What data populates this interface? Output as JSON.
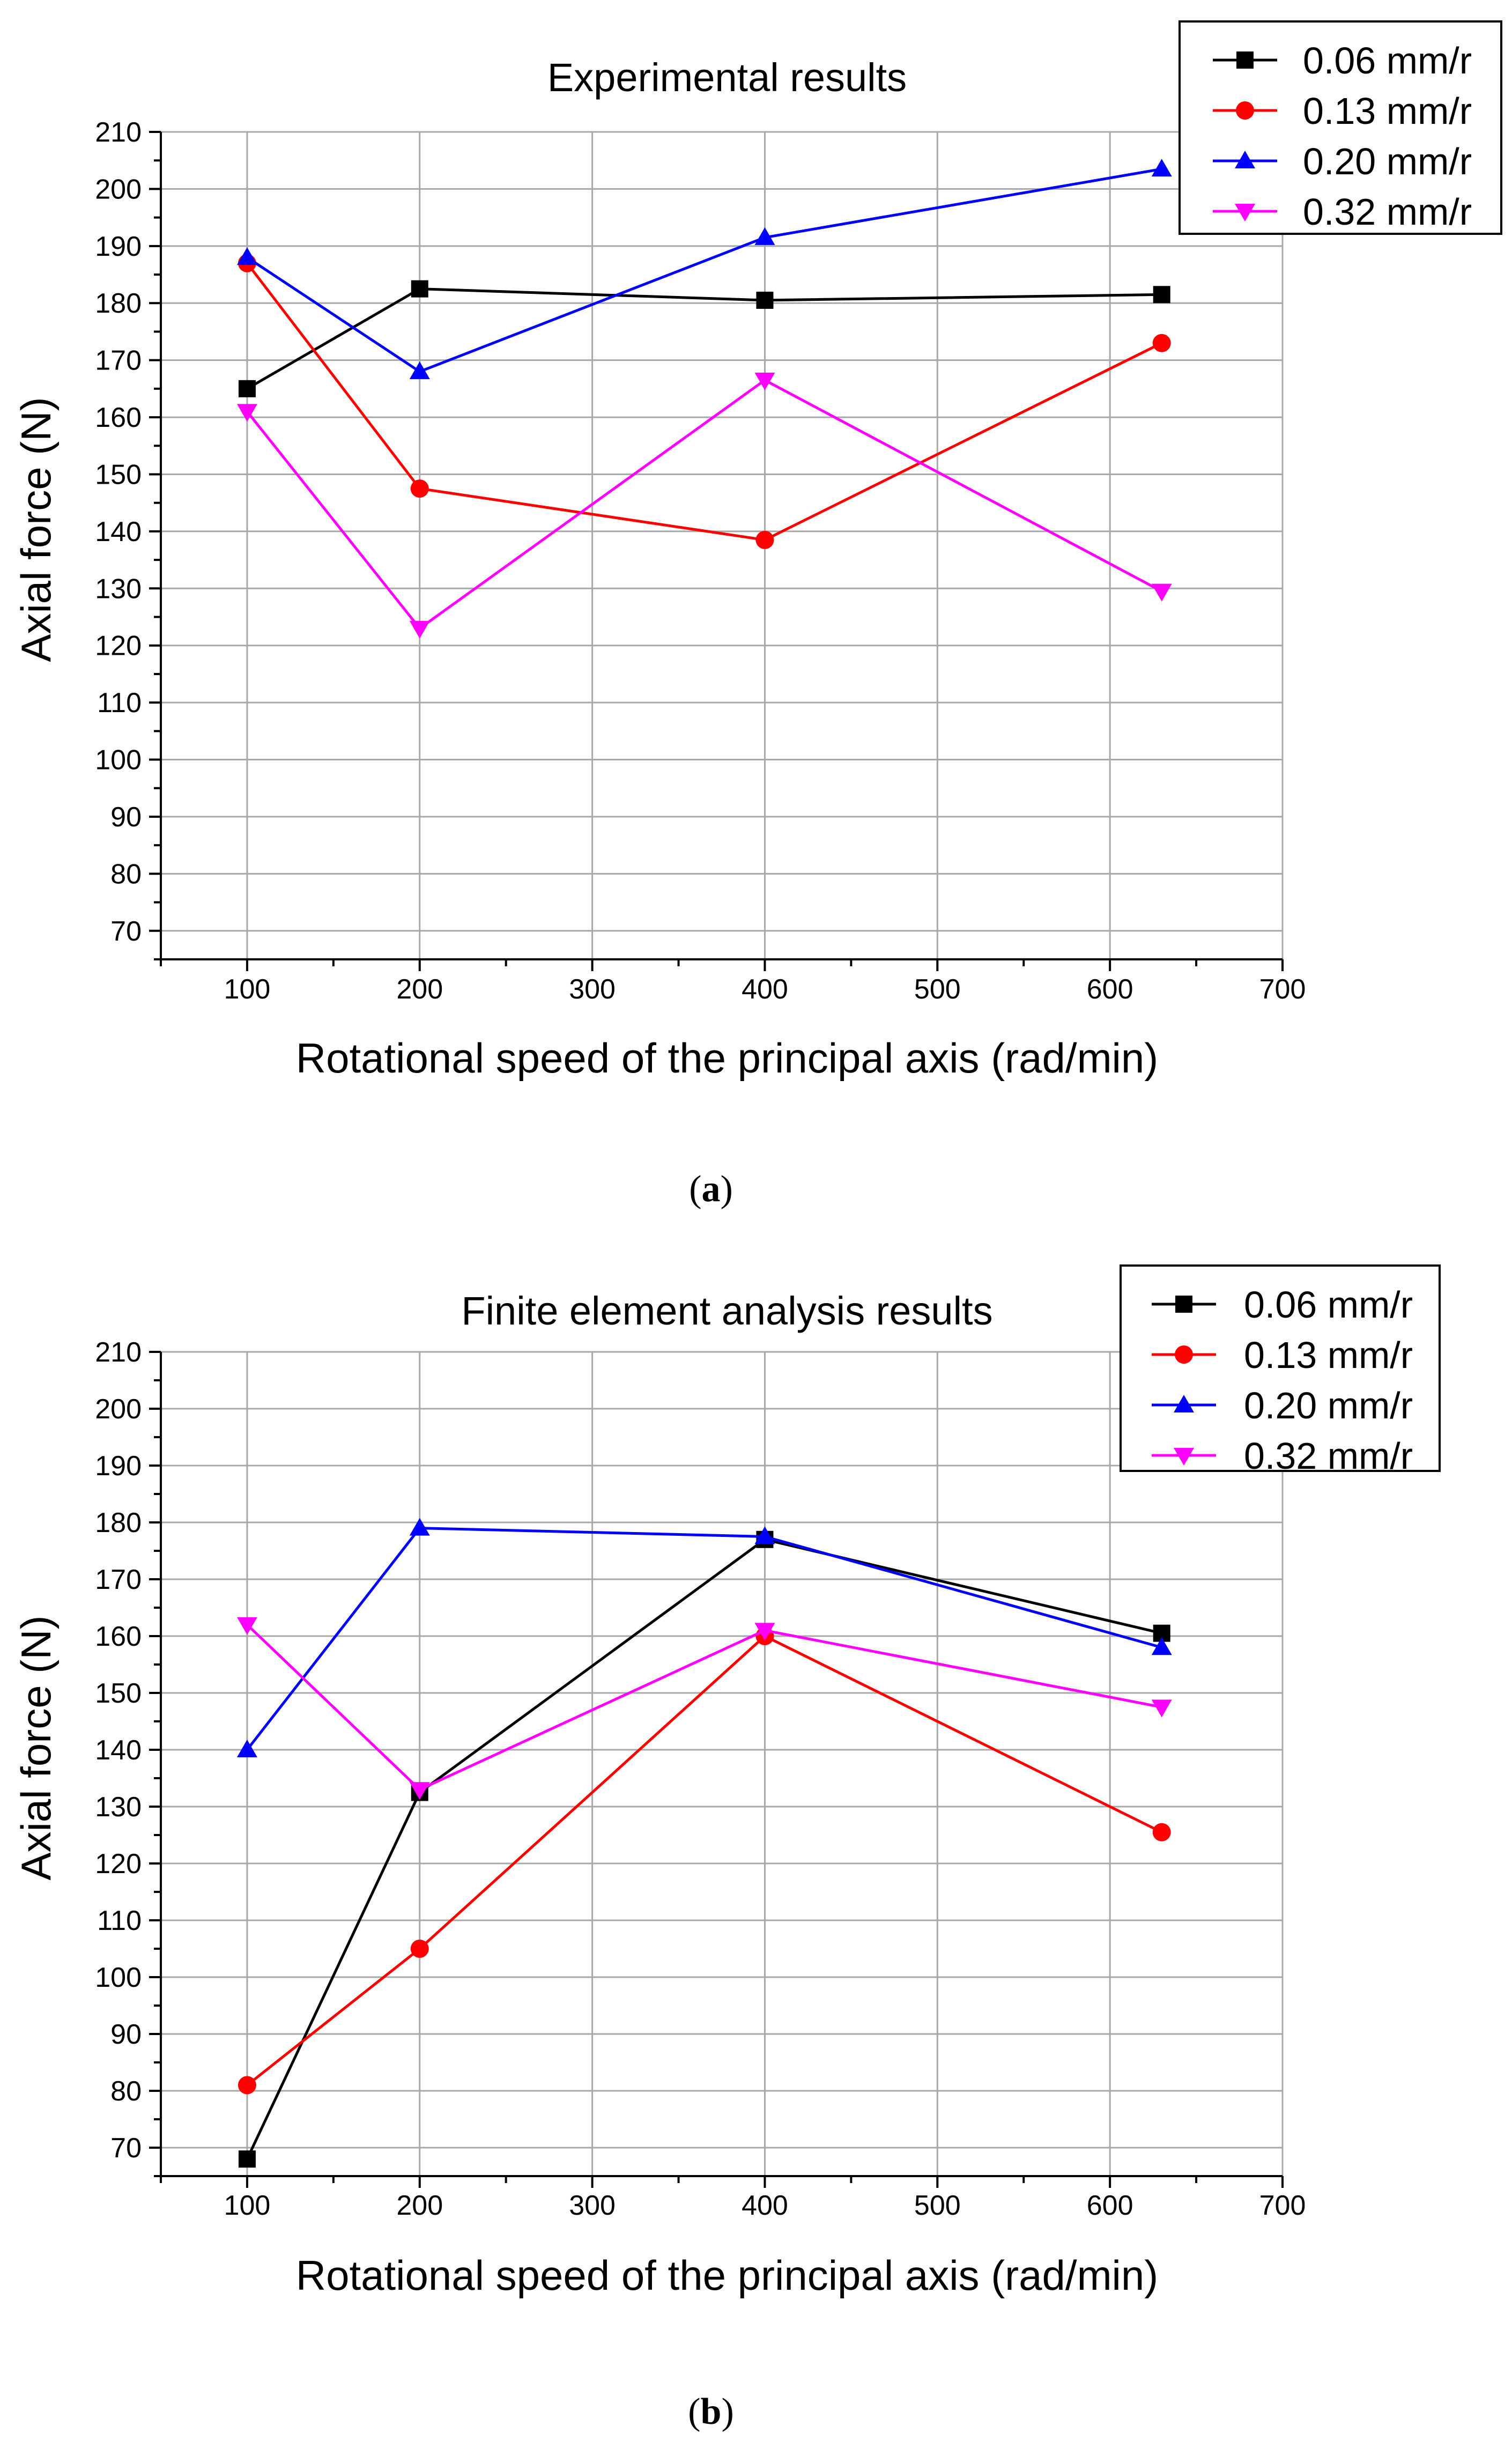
{
  "captions": [
    "a",
    "b"
  ],
  "chart_data": [
    {
      "type": "line",
      "title": "Experimental results",
      "xlabel": "Rotational speed of the principal axis (rad/min)",
      "ylabel": "Axial force (N)",
      "xlim": [
        50,
        700
      ],
      "ylim": [
        65,
        210
      ],
      "xticks": [
        100,
        200,
        300,
        400,
        500,
        600,
        700
      ],
      "yticks": [
        70,
        80,
        90,
        100,
        110,
        120,
        130,
        140,
        150,
        160,
        170,
        180,
        190,
        200,
        210
      ],
      "x": [
        100,
        200,
        400,
        630
      ],
      "series": [
        {
          "name": "0.06 mm/r",
          "color": "#000000",
          "marker": "square",
          "values": [
            165,
            182.5,
            180.5,
            181.5
          ]
        },
        {
          "name": "0.13 mm/r",
          "color": "#ff0000",
          "marker": "circle",
          "values": [
            187,
            147.5,
            138.5,
            173
          ]
        },
        {
          "name": "0.20 mm/r",
          "color": "#0000ff",
          "marker": "triangle-up",
          "values": [
            188,
            168,
            191.5,
            203.5
          ]
        },
        {
          "name": "0.32 mm/r",
          "color": "#ff00ff",
          "marker": "triangle-down",
          "values": [
            161,
            123,
            166.5,
            129.5
          ]
        }
      ],
      "legend": "top-right"
    },
    {
      "type": "line",
      "title": "Finite element analysis results",
      "xlabel": "Rotational speed of  the principal axis (rad/min)",
      "ylabel": "Axial force (N)",
      "xlim": [
        50,
        700
      ],
      "ylim": [
        65,
        210
      ],
      "xticks": [
        100,
        200,
        300,
        400,
        500,
        600,
        700
      ],
      "yticks": [
        70,
        80,
        90,
        100,
        110,
        120,
        130,
        140,
        150,
        160,
        170,
        180,
        190,
        200,
        210
      ],
      "x": [
        100,
        200,
        400,
        630
      ],
      "series": [
        {
          "name": "0.06 mm/r",
          "color": "#000000",
          "marker": "square",
          "values": [
            68,
            132.5,
            177,
            160.5
          ]
        },
        {
          "name": "0.13 mm/r",
          "color": "#ff0000",
          "marker": "circle",
          "values": [
            81,
            105,
            160,
            125.5
          ]
        },
        {
          "name": "0.20 mm/r",
          "color": "#0000ff",
          "marker": "triangle-up",
          "values": [
            140,
            179,
            177.5,
            158
          ]
        },
        {
          "name": "0.32 mm/r",
          "color": "#ff00ff",
          "marker": "triangle-down",
          "values": [
            162,
            133,
            161,
            147.5
          ]
        }
      ],
      "legend": "top-right"
    }
  ]
}
